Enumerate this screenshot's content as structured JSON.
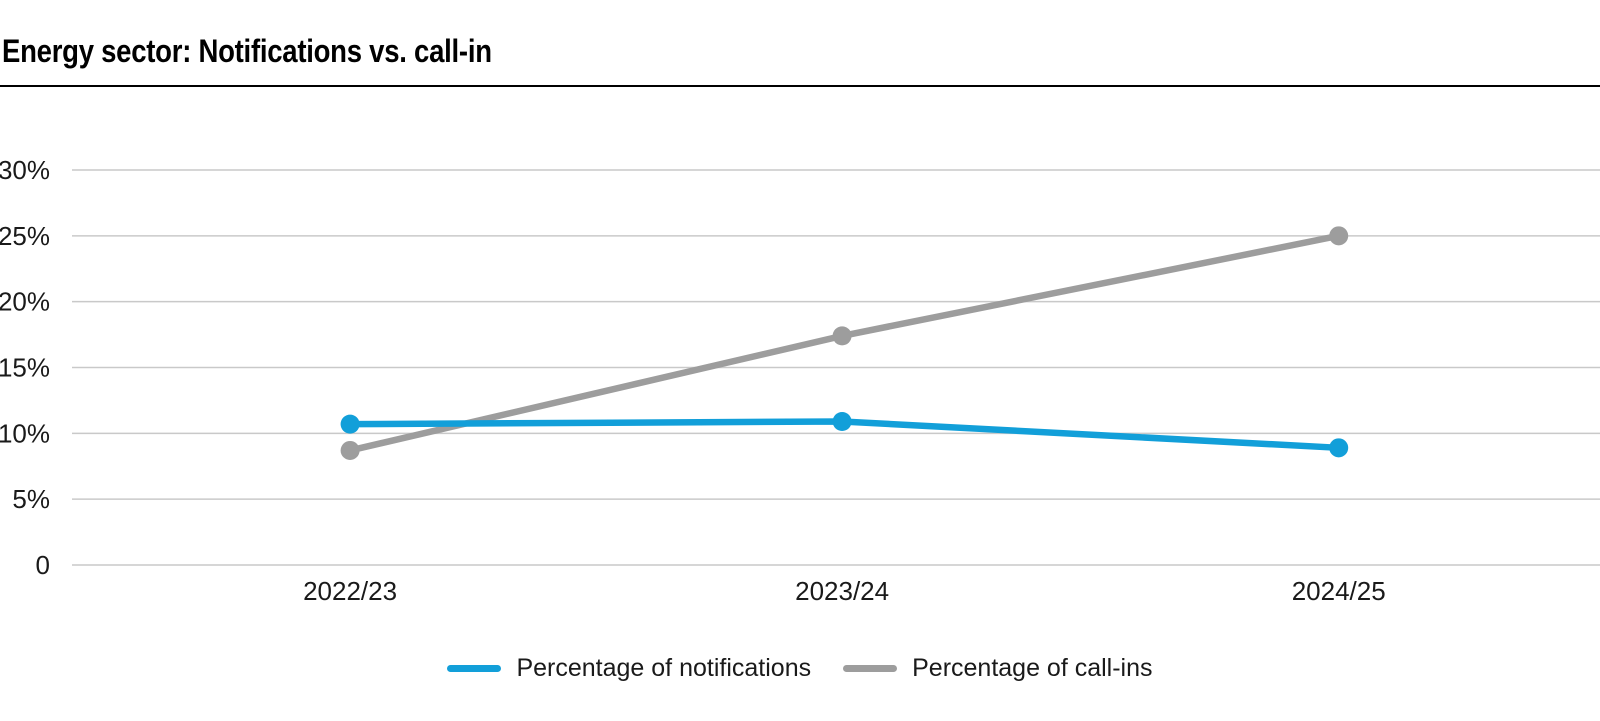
{
  "page": {
    "title": "Energy sector: Notifications vs. call-in"
  },
  "colors": {
    "notifications_blue": "#129fd9",
    "callins_gray": "#9d9d9d",
    "gridline": "#c9c9c9",
    "text": "#1a1a1a",
    "title_rule": "#000000"
  },
  "legend": {
    "items": [
      {
        "label": "Percentage of notifications",
        "color": "#129fd9"
      },
      {
        "label": "Percentage of call-ins",
        "color": "#9d9d9d"
      }
    ]
  },
  "chart_data": {
    "type": "line",
    "title": "Energy sector: Notifications vs. call-in",
    "categories": [
      "2022/23",
      "2023/24",
      "2024/25"
    ],
    "series": [
      {
        "name": "Percentage of notifications",
        "color": "#129fd9",
        "values": [
          10.7,
          10.9,
          8.9
        ]
      },
      {
        "name": "Percentage of call-ins",
        "color": "#9d9d9d",
        "values": [
          8.7,
          17.4,
          25.0
        ]
      }
    ],
    "xlabel": "",
    "ylabel": "",
    "ylim": [
      0,
      30
    ],
    "yticks": [
      {
        "value": 0,
        "label": "0"
      },
      {
        "value": 5,
        "label": "5%"
      },
      {
        "value": 10,
        "label": "10%"
      },
      {
        "value": 15,
        "label": "15%"
      },
      {
        "value": 20,
        "label": "20%"
      },
      {
        "value": 25,
        "label": "25%"
      },
      {
        "value": 30,
        "label": "30%"
      }
    ],
    "grid": true,
    "legend_position": "bottom",
    "markers": true
  }
}
